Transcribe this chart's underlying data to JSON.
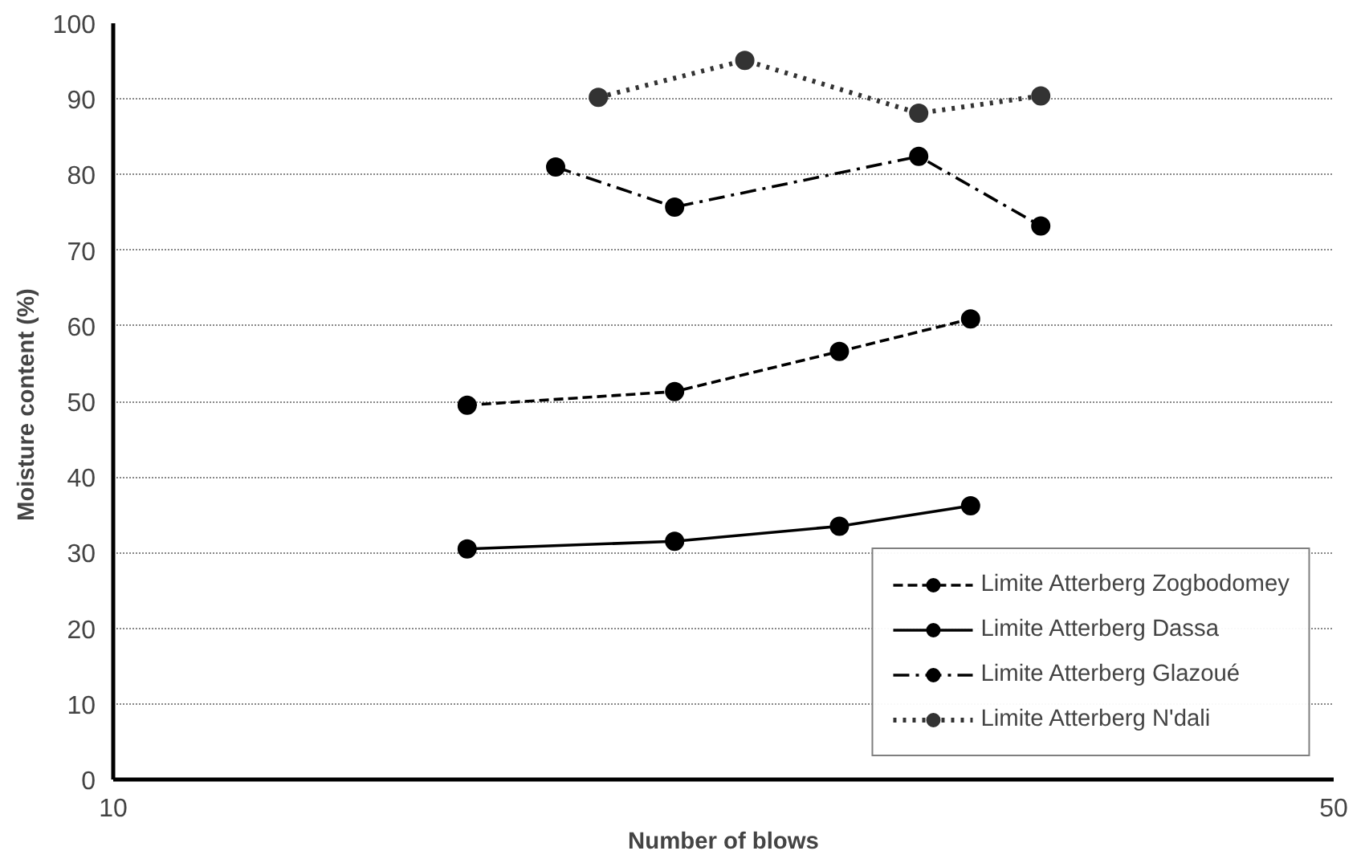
{
  "chart_data": {
    "type": "line",
    "xlabel": "Number of blows",
    "ylabel": "Moisture content  (%)",
    "xlim": [
      10,
      50
    ],
    "xticks": [
      10,
      50
    ],
    "ylim": [
      0,
      100
    ],
    "yticks": [
      0,
      10,
      20,
      30,
      40,
      50,
      60,
      70,
      80,
      90,
      100
    ],
    "grid": "y",
    "legend": "bottom right",
    "marker": "circle",
    "series": [
      {
        "name": "Limite Atterberg Zogbodomey",
        "color": "#000000",
        "line_style": "dashed",
        "x": [
          21.6,
          28.4,
          33.8,
          38.1
        ],
        "values": [
          49.5,
          51.3,
          56.6,
          60.9
        ]
      },
      {
        "name": "Limite Atterberg Dassa",
        "color": "#000000",
        "line_style": "solid",
        "x": [
          21.6,
          28.4,
          33.8,
          38.1
        ],
        "values": [
          30.5,
          31.5,
          33.5,
          36.2
        ]
      },
      {
        "name": "Limite Atterberg Glazoué",
        "color": "#000000",
        "line_style": "dashdot",
        "x": [
          24.5,
          28.4,
          36.4,
          40.4
        ],
        "values": [
          81.0,
          75.7,
          82.4,
          73.2
        ]
      },
      {
        "name": "Limite Atterberg N'dali",
        "color": "#333333",
        "line_style": "dotted",
        "x": [
          25.9,
          30.7,
          36.4,
          40.4
        ],
        "values": [
          90.2,
          95.1,
          88.1,
          90.4
        ]
      }
    ]
  }
}
